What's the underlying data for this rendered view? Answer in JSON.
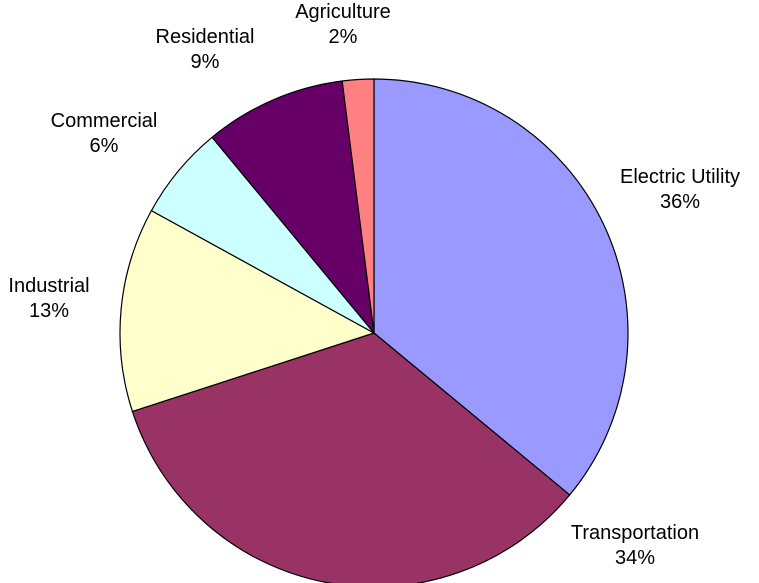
{
  "chart_data": {
    "type": "pie",
    "slices": [
      {
        "label": "Electric Utility",
        "value": 36,
        "value_label": "36%",
        "color": "#9999FF"
      },
      {
        "label": "Transportation",
        "value": 34,
        "value_label": "34%",
        "color": "#993366"
      },
      {
        "label": "Industrial",
        "value": 13,
        "value_label": "13%",
        "color": "#FFFFCC"
      },
      {
        "label": "Commercial",
        "value": 6,
        "value_label": "6%",
        "color": "#CCFFFF"
      },
      {
        "label": "Residential",
        "value": 9,
        "value_label": "9%",
        "color": "#660066"
      },
      {
        "label": "Agriculture",
        "value": 2,
        "value_label": "2%",
        "color": "#FF8080"
      }
    ],
    "start_angle": "12 o'clock",
    "direction": "clockwise",
    "legend": "none"
  }
}
